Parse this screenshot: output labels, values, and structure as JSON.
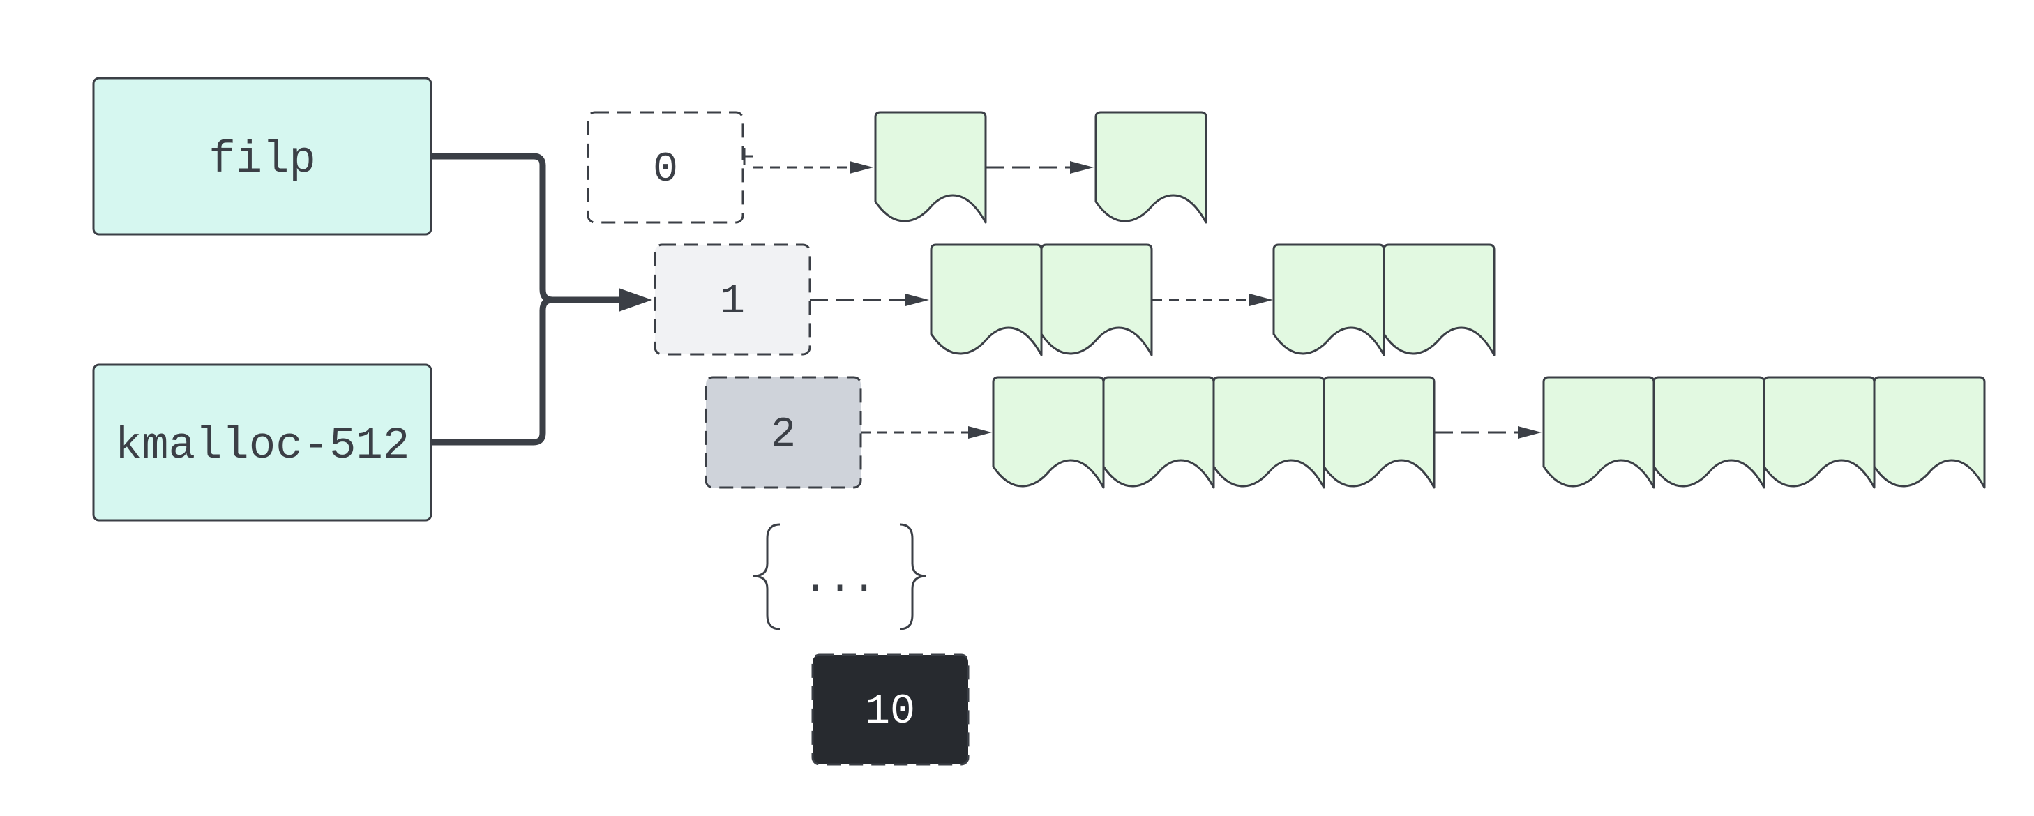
{
  "colors": {
    "cache_fill": "#d6f7f0",
    "page_fill": "#e2f9e1",
    "stroke": "#3b3f46",
    "order0_fill": "#ffffff",
    "order1_fill": "#f1f2f4",
    "order2_fill": "#cfd3da",
    "order10_fill": "#272a2f",
    "dark_text": "#3b3f46",
    "light_text": "#ffffff"
  },
  "caches": [
    {
      "label": "filp"
    },
    {
      "label": "kmalloc-512"
    }
  ],
  "orders": [
    {
      "label": "0",
      "block_pages": 1,
      "blocks": 2
    },
    {
      "label": "1",
      "block_pages": 2,
      "blocks": 2
    },
    {
      "label": "2",
      "block_pages": 4,
      "blocks": 2
    },
    {
      "label": "10",
      "block_pages": 0,
      "blocks": 0
    }
  ],
  "ellipsis": {
    "text": "..."
  }
}
